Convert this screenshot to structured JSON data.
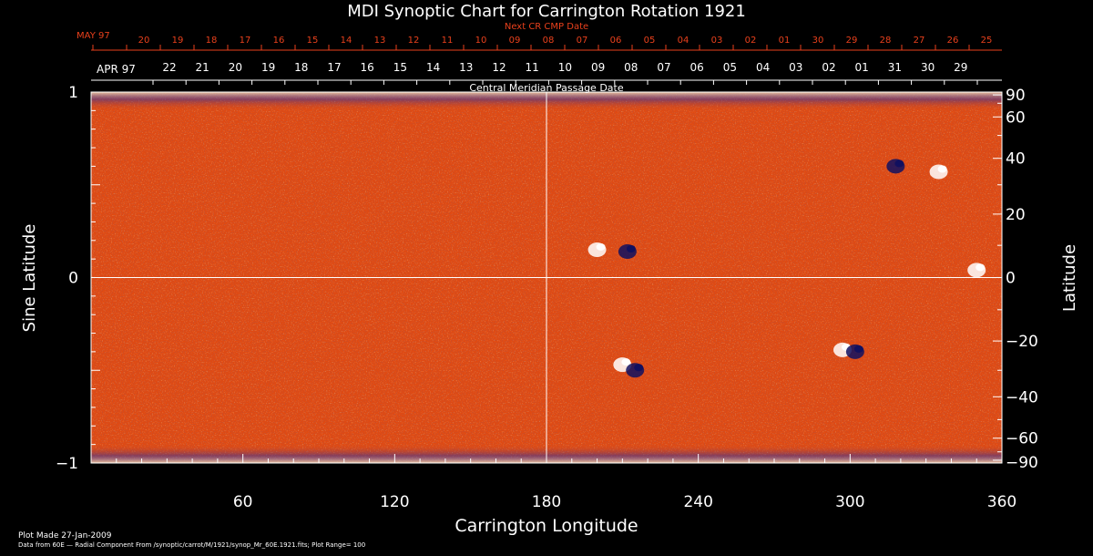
{
  "chart_data": {
    "type": "heatmap",
    "title": "MDI Synoptic Chart for Carrington Rotation 1921",
    "xlabel": "Carrington Longitude",
    "ylabel_left": "Sine Latitude",
    "ylabel_right": "Latitude",
    "xlim": [
      0,
      360
    ],
    "ylim": [
      -1,
      1
    ],
    "x_ticks": [
      60,
      120,
      180,
      240,
      300,
      360
    ],
    "y_ticks_left": [
      "1",
      "0",
      "−1"
    ],
    "y_ticks_right": [
      90,
      60,
      40,
      20,
      0,
      -20,
      -40,
      -60,
      -90
    ],
    "grid_lines": {
      "longitude": 180,
      "sine_latitude": 0
    },
    "top_axis_label": "Central Meridian Passage Date",
    "top_month_label": "APR 97",
    "top_dates": [
      "22",
      "21",
      "20",
      "19",
      "18",
      "17",
      "16",
      "15",
      "14",
      "13",
      "12",
      "11",
      "10",
      "09",
      "08",
      "07",
      "06",
      "05",
      "04",
      "03",
      "02",
      "01",
      "31",
      "30",
      "29"
    ],
    "next_axis_label": "Next CR CMP Date",
    "next_month_label": "MAY 97",
    "next_dates": [
      "20",
      "19",
      "18",
      "17",
      "16",
      "15",
      "14",
      "13",
      "12",
      "11",
      "10",
      "09",
      "08",
      "07",
      "06",
      "05",
      "04",
      "03",
      "02",
      "01",
      "30",
      "29",
      "28",
      "27",
      "26",
      "25"
    ],
    "colors": {
      "background_field": "#e04a12",
      "positive": "#ffffff",
      "negative": "#101060",
      "red_axis": "#e8401c"
    },
    "active_regions": [
      {
        "lon": 200,
        "sinlat": 0.15,
        "polarity": "positive"
      },
      {
        "lon": 212,
        "sinlat": 0.14,
        "polarity": "negative"
      },
      {
        "lon": 210,
        "sinlat": -0.47,
        "polarity": "positive"
      },
      {
        "lon": 215,
        "sinlat": -0.5,
        "polarity": "negative"
      },
      {
        "lon": 297,
        "sinlat": -0.39,
        "polarity": "positive"
      },
      {
        "lon": 302,
        "sinlat": -0.4,
        "polarity": "negative"
      },
      {
        "lon": 350,
        "sinlat": 0.04,
        "polarity": "positive"
      },
      {
        "lon": 318,
        "sinlat": 0.6,
        "polarity": "negative"
      },
      {
        "lon": 335,
        "sinlat": 0.57,
        "polarity": "positive"
      }
    ]
  },
  "footer": {
    "plot_made": "Plot Made 27-Jan-2009",
    "data_source": "Data from 60E — Radial Component From /synoptic/carrot/M/1921/synop_Mr_60E.1921.fits; Plot Range=  100"
  }
}
